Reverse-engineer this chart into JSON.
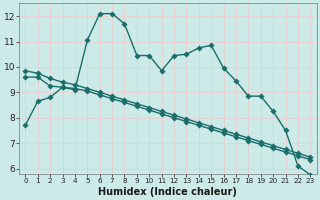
{
  "xlabel": "Humidex (Indice chaleur)",
  "bg_color": "#cceae8",
  "grid_color": "#e8d0d0",
  "line_color": "#1a6e6a",
  "xlim": [
    -0.5,
    23.5
  ],
  "ylim": [
    5.8,
    12.5
  ],
  "xticks": [
    0,
    1,
    2,
    3,
    4,
    5,
    6,
    7,
    8,
    9,
    10,
    11,
    12,
    13,
    14,
    15,
    16,
    17,
    18,
    19,
    20,
    21,
    22,
    23
  ],
  "yticks": [
    6,
    7,
    8,
    9,
    10,
    11,
    12
  ],
  "line1_y": [
    7.7,
    8.65,
    8.8,
    9.2,
    9.1,
    11.05,
    12.1,
    12.1,
    11.7,
    10.45,
    10.45,
    9.85,
    10.45,
    10.5,
    10.75,
    10.85,
    9.95,
    9.45,
    8.85,
    8.85,
    8.25,
    7.5,
    6.1,
    5.75
  ],
  "line2_y": [
    9.6,
    9.6,
    9.25,
    9.2,
    9.15,
    9.05,
    8.9,
    8.75,
    8.6,
    8.45,
    8.3,
    8.15,
    8.0,
    7.85,
    7.7,
    7.55,
    7.4,
    7.25,
    7.1,
    6.95,
    6.8,
    6.65,
    6.5,
    6.35
  ],
  "line3_y": [
    9.85,
    9.75,
    9.55,
    9.4,
    9.3,
    9.15,
    9.0,
    8.85,
    8.7,
    8.55,
    8.4,
    8.25,
    8.1,
    7.95,
    7.8,
    7.65,
    7.5,
    7.35,
    7.2,
    7.05,
    6.9,
    6.75,
    6.6,
    6.45
  ],
  "marker_size": 2.8,
  "lw": 1.0,
  "xlabel_fontsize": 7,
  "tick_fontsize_x": 5.2,
  "tick_fontsize_y": 6.5
}
